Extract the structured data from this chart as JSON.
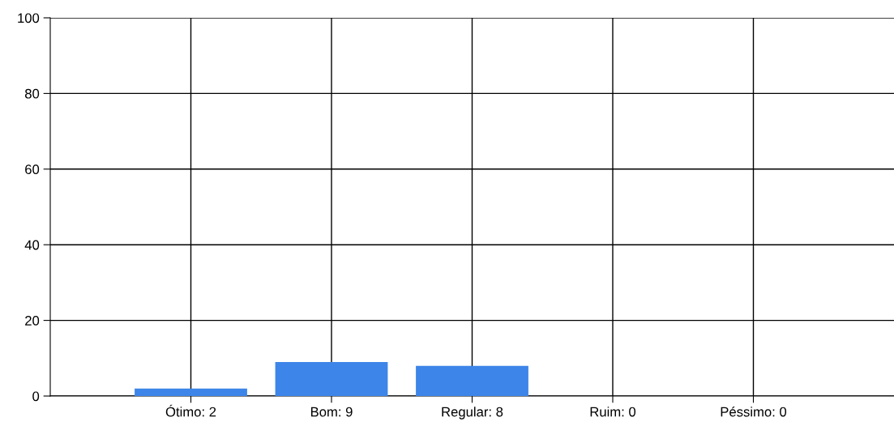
{
  "chart_data": {
    "type": "bar",
    "categories": [
      "Ótimo: 2",
      "Bom: 9",
      "Regular: 8",
      "Ruim: 0",
      "Péssimo: 0"
    ],
    "values": [
      2,
      9,
      8,
      0,
      0
    ],
    "color": "#3d85e8",
    "ylim": [
      0,
      100
    ],
    "yticks": [
      0,
      20,
      40,
      60,
      80,
      100
    ],
    "grid": true,
    "legend": false
  }
}
